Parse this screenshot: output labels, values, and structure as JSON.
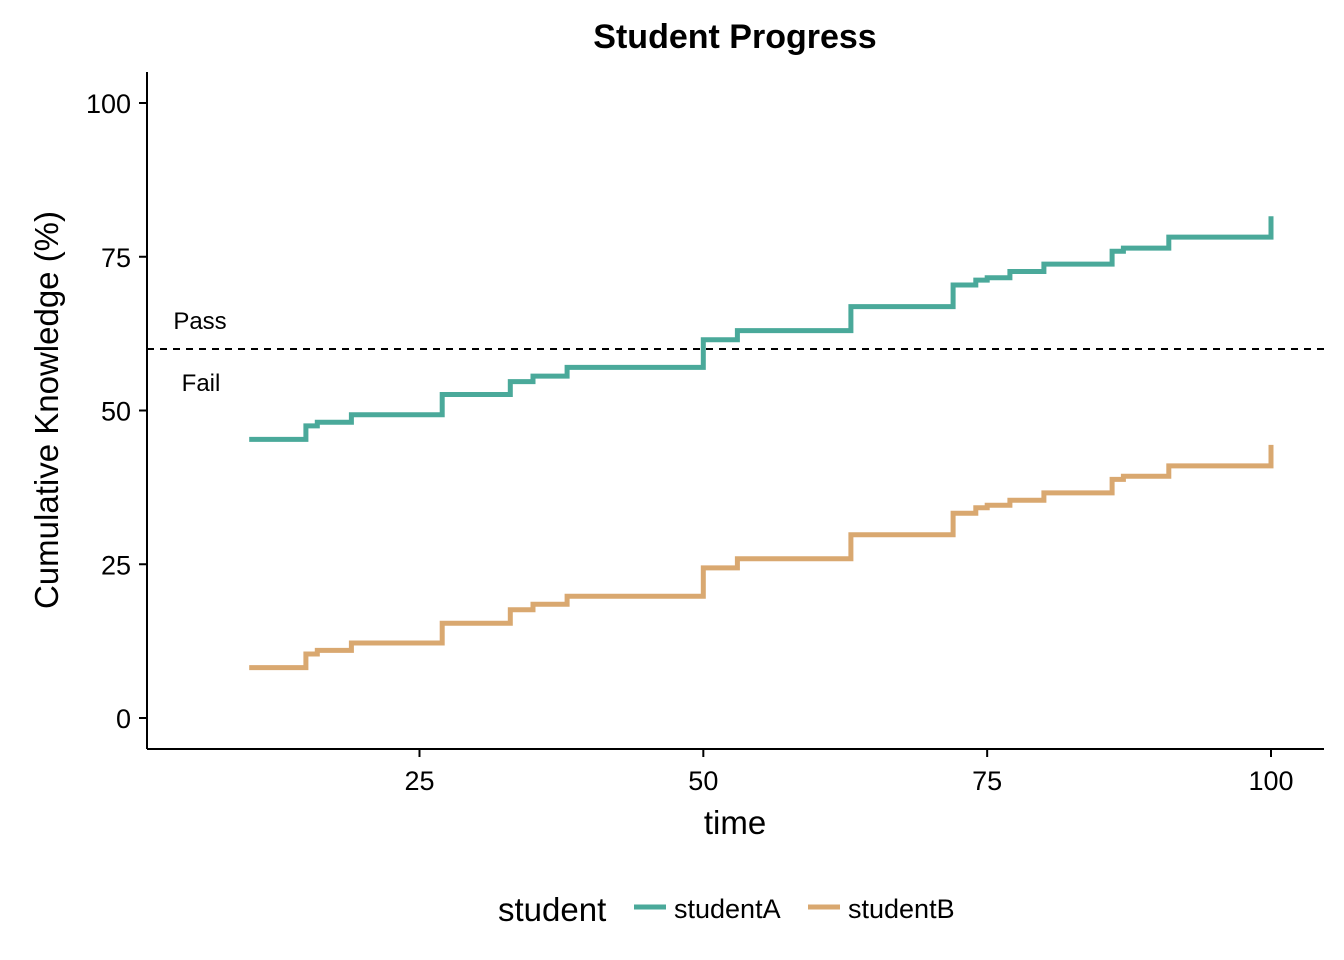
{
  "chart_data": {
    "type": "line",
    "step": true,
    "title": "Student Progress",
    "xlabel": "time",
    "ylabel": "Cumulative Knowledge (%)",
    "xlim": [
      1,
      105
    ],
    "ylim": [
      -5,
      105
    ],
    "xticks": [
      25,
      50,
      75,
      100
    ],
    "yticks": [
      0,
      25,
      50,
      75,
      100
    ],
    "grid": false,
    "threshold": {
      "y": 60,
      "style": "dashed",
      "above_label": "Pass",
      "below_label": "Fail"
    },
    "legend": {
      "title": "student",
      "position": "bottom"
    },
    "series": [
      {
        "name": "studentA",
        "color": "#4AA99A",
        "points": [
          [
            10,
            45.3
          ],
          [
            15,
            47.5
          ],
          [
            16,
            48.1
          ],
          [
            19,
            49.3
          ],
          [
            27,
            52.6
          ],
          [
            33,
            54.7
          ],
          [
            35,
            55.6
          ],
          [
            38,
            57.0
          ],
          [
            50,
            61.5
          ],
          [
            53,
            63.0
          ],
          [
            63,
            66.9
          ],
          [
            72,
            70.4
          ],
          [
            74,
            71.2
          ],
          [
            75,
            71.6
          ],
          [
            77,
            72.6
          ],
          [
            80,
            73.8
          ],
          [
            86,
            75.9
          ],
          [
            87,
            76.4
          ],
          [
            91,
            78.2
          ],
          [
            100,
            81.6
          ]
        ]
      },
      {
        "name": "studentB",
        "color": "#D9A870",
        "points": [
          [
            10,
            8.2
          ],
          [
            15,
            10.4
          ],
          [
            16,
            11.0
          ],
          [
            19,
            12.2
          ],
          [
            27,
            15.4
          ],
          [
            33,
            17.6
          ],
          [
            35,
            18.5
          ],
          [
            38,
            19.8
          ],
          [
            50,
            24.4
          ],
          [
            53,
            25.9
          ],
          [
            63,
            29.8
          ],
          [
            72,
            33.3
          ],
          [
            74,
            34.2
          ],
          [
            75,
            34.6
          ],
          [
            77,
            35.4
          ],
          [
            80,
            36.6
          ],
          [
            86,
            38.8
          ],
          [
            87,
            39.3
          ],
          [
            91,
            41.0
          ],
          [
            100,
            44.4
          ]
        ]
      }
    ]
  }
}
